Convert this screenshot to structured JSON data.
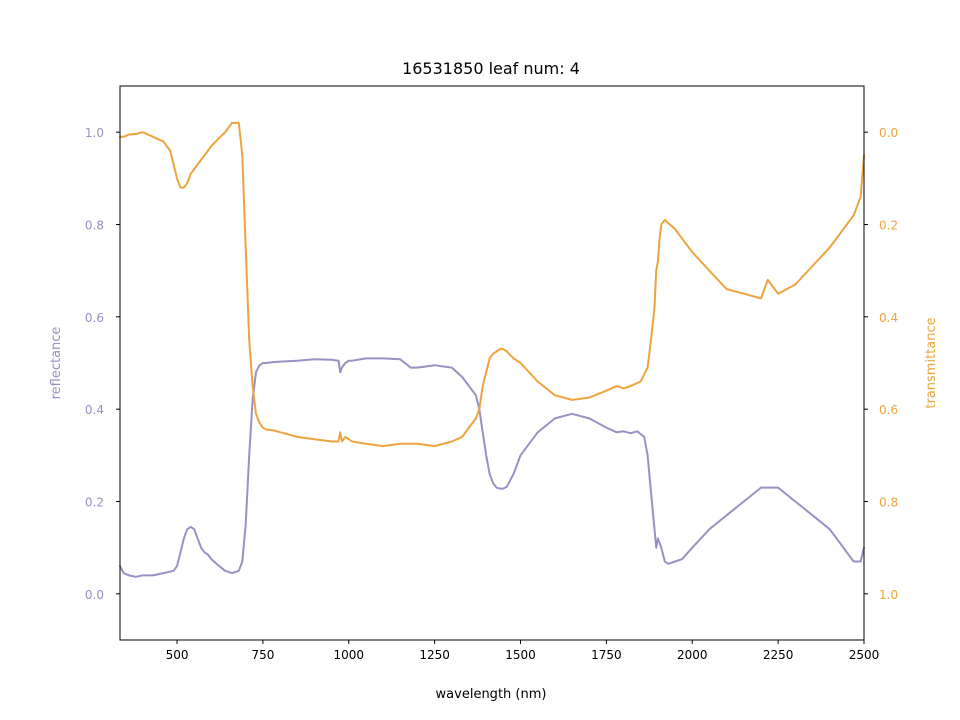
{
  "chart_data": {
    "type": "line",
    "title": "16531850 leaf num: 4",
    "xlabel": "wavelength (nm)",
    "xlim": [
      334,
      2500
    ],
    "x_ticks": [
      500,
      750,
      1000,
      1250,
      1500,
      1750,
      2000,
      2250,
      2500
    ],
    "grid": false,
    "legend": "none",
    "axes": {
      "left": {
        "label": "reflectance",
        "color": "#9891c4",
        "ylim": [
          -0.1,
          1.1
        ],
        "ticks": [
          0.0,
          0.2,
          0.4,
          0.6,
          0.8,
          1.0
        ],
        "tick_labels": [
          "0.0",
          "0.2",
          "0.4",
          "0.6",
          "0.8",
          "1.0"
        ]
      },
      "right": {
        "label": "transmittance",
        "color": "#eea43e",
        "inverted": true,
        "ylim": [
          1.1,
          -0.1
        ],
        "ticks": [
          0.0,
          0.2,
          0.4,
          0.6,
          0.8,
          1.0
        ],
        "tick_labels": [
          "0.0",
          "0.2",
          "0.4",
          "0.6",
          "0.8",
          "1.0"
        ]
      }
    },
    "series": [
      {
        "axis": "left",
        "color": "#9891c4",
        "x": [
          334,
          345,
          360,
          380,
          400,
          430,
          460,
          490,
          500,
          510,
          520,
          530,
          540,
          550,
          560,
          570,
          580,
          590,
          600,
          620,
          640,
          660,
          680,
          690,
          700,
          710,
          720,
          730,
          740,
          750,
          760,
          780,
          800,
          850,
          900,
          950,
          970,
          975,
          980,
          990,
          1000,
          1010,
          1050,
          1100,
          1150,
          1180,
          1200,
          1250,
          1300,
          1330,
          1350,
          1370,
          1380,
          1390,
          1400,
          1410,
          1420,
          1430,
          1440,
          1450,
          1460,
          1480,
          1500,
          1550,
          1600,
          1650,
          1700,
          1750,
          1780,
          1800,
          1820,
          1840,
          1860,
          1870,
          1880,
          1890,
          1895,
          1900,
          1910,
          1920,
          1930,
          1950,
          1970,
          2000,
          2050,
          2100,
          2150,
          2200,
          2250,
          2300,
          2350,
          2400,
          2430,
          2450,
          2470,
          2490,
          2500
        ],
        "y": [
          0.06,
          0.045,
          0.04,
          0.037,
          0.04,
          0.04,
          0.045,
          0.05,
          0.06,
          0.09,
          0.12,
          0.14,
          0.145,
          0.14,
          0.12,
          0.1,
          0.09,
          0.085,
          0.075,
          0.062,
          0.05,
          0.045,
          0.05,
          0.07,
          0.15,
          0.3,
          0.42,
          0.48,
          0.495,
          0.5,
          0.5,
          0.502,
          0.503,
          0.505,
          0.508,
          0.507,
          0.505,
          0.48,
          0.49,
          0.5,
          0.505,
          0.505,
          0.51,
          0.51,
          0.508,
          0.49,
          0.49,
          0.495,
          0.49,
          0.47,
          0.45,
          0.43,
          0.4,
          0.35,
          0.3,
          0.26,
          0.24,
          0.23,
          0.228,
          0.228,
          0.232,
          0.26,
          0.3,
          0.35,
          0.38,
          0.39,
          0.38,
          0.36,
          0.35,
          0.352,
          0.348,
          0.352,
          0.34,
          0.3,
          0.22,
          0.14,
          0.1,
          0.12,
          0.1,
          0.07,
          0.065,
          0.07,
          0.075,
          0.1,
          0.14,
          0.17,
          0.2,
          0.23,
          0.23,
          0.2,
          0.17,
          0.14,
          0.11,
          0.09,
          0.07,
          0.07,
          0.1
        ]
      },
      {
        "axis": "right",
        "color": "#eea43e",
        "x": [
          334,
          345,
          360,
          380,
          400,
          430,
          460,
          480,
          500,
          510,
          520,
          530,
          540,
          550,
          560,
          570,
          580,
          600,
          620,
          640,
          660,
          670,
          680,
          690,
          700,
          710,
          720,
          730,
          740,
          750,
          760,
          780,
          800,
          850,
          900,
          950,
          970,
          975,
          980,
          990,
          1000,
          1010,
          1050,
          1100,
          1150,
          1200,
          1250,
          1300,
          1330,
          1350,
          1370,
          1380,
          1390,
          1400,
          1410,
          1420,
          1430,
          1440,
          1450,
          1460,
          1480,
          1500,
          1550,
          1600,
          1650,
          1700,
          1750,
          1780,
          1800,
          1820,
          1850,
          1870,
          1880,
          1890,
          1895,
          1900,
          1905,
          1910,
          1920,
          1950,
          2000,
          2050,
          2100,
          2150,
          2200,
          2220,
          2250,
          2300,
          2350,
          2400,
          2430,
          2450,
          2470,
          2490,
          2500
        ],
        "y": [
          0.01,
          0.01,
          0.005,
          0.004,
          0.0,
          0.01,
          0.02,
          0.04,
          0.1,
          0.12,
          0.12,
          0.11,
          0.09,
          0.08,
          0.07,
          0.06,
          0.05,
          0.03,
          0.015,
          0.0,
          -0.02,
          -0.02,
          -0.02,
          0.05,
          0.25,
          0.45,
          0.55,
          0.61,
          0.63,
          0.64,
          0.644,
          0.646,
          0.65,
          0.66,
          0.665,
          0.67,
          0.67,
          0.65,
          0.67,
          0.66,
          0.665,
          0.67,
          0.675,
          0.68,
          0.675,
          0.675,
          0.68,
          0.67,
          0.66,
          0.64,
          0.62,
          0.6,
          0.55,
          0.52,
          0.49,
          0.48,
          0.475,
          0.47,
          0.47,
          0.475,
          0.49,
          0.5,
          0.54,
          0.57,
          0.58,
          0.575,
          0.56,
          0.55,
          0.555,
          0.55,
          0.54,
          0.51,
          0.45,
          0.38,
          0.3,
          0.28,
          0.23,
          0.2,
          0.19,
          0.21,
          0.26,
          0.3,
          0.34,
          0.35,
          0.36,
          0.32,
          0.35,
          0.33,
          0.29,
          0.25,
          0.22,
          0.2,
          0.18,
          0.14,
          0.05
        ]
      }
    ]
  }
}
